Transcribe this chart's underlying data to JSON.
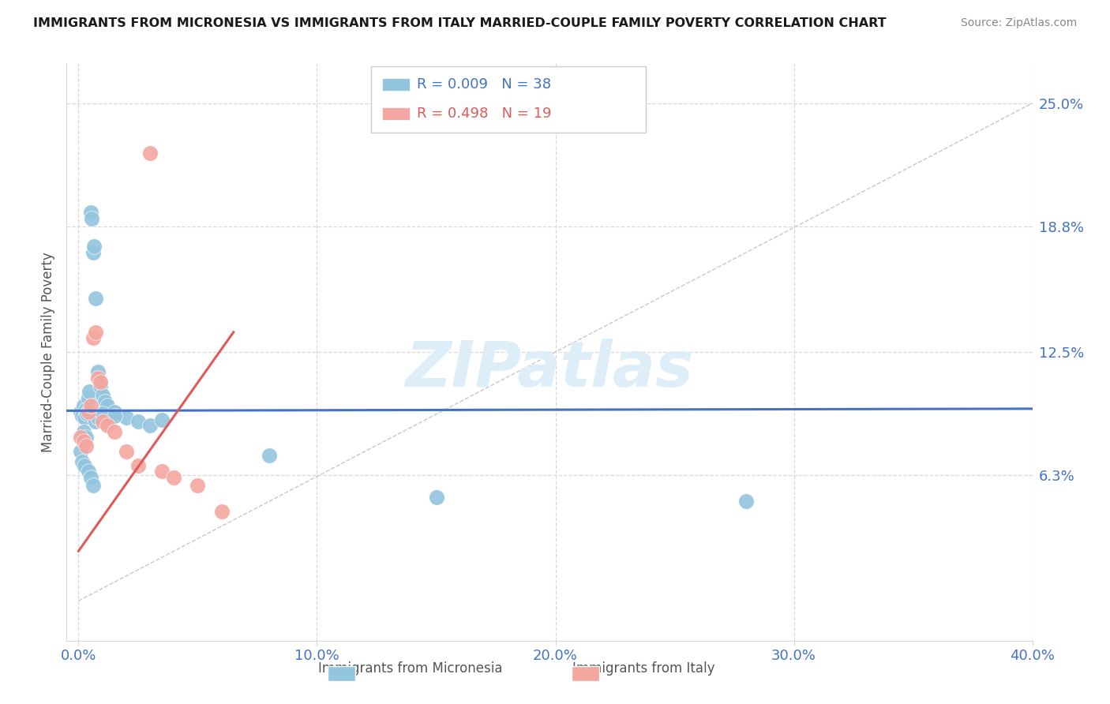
{
  "title": "IMMIGRANTS FROM MICRONESIA VS IMMIGRANTS FROM ITALY MARRIED-COUPLE FAMILY POVERTY CORRELATION CHART",
  "source": "Source: ZipAtlas.com",
  "ylabel": "Married-Couple Family Poverty",
  "ytick_values": [
    6.3,
    12.5,
    18.8,
    25.0
  ],
  "ytick_labels": [
    "6.3%",
    "12.5%",
    "18.8%",
    "25.0%"
  ],
  "ymax": 27.0,
  "ymin": -2.0,
  "xmax": 40.0,
  "xmin": -0.5,
  "xtick_values": [
    0,
    10,
    20,
    30,
    40
  ],
  "xtick_labels": [
    "0.0%",
    "10.0%",
    "20.0%",
    "30.0%",
    "40.0%"
  ],
  "watermark": "ZIPatlas",
  "legend_blue_r": "0.009",
  "legend_blue_n": "38",
  "legend_pink_r": "0.498",
  "legend_pink_n": "19",
  "legend_label_blue": "Immigrants from Micronesia",
  "legend_label_pink": "Immigrants from Italy",
  "blue_color": "#92c5de",
  "pink_color": "#f4a6a0",
  "blue_line_color": "#4472c4",
  "pink_line_color": "#e05a5a",
  "grid_color": "#d9d9d9",
  "diag_color": "#c8c8c8",
  "micronesia_x": [
    0.1,
    0.15,
    0.2,
    0.25,
    0.3,
    0.35,
    0.4,
    0.45,
    0.5,
    0.55,
    0.6,
    0.65,
    0.7,
    0.8,
    0.9,
    1.0,
    1.1,
    1.2,
    1.5,
    2.0,
    2.5,
    3.0,
    3.5,
    0.2,
    0.3,
    0.1,
    0.15,
    0.25,
    0.4,
    0.5,
    0.6,
    0.7,
    0.8,
    1.0,
    1.5,
    8.0,
    15.0,
    28.0
  ],
  "micronesia_y": [
    9.5,
    9.3,
    9.8,
    9.2,
    9.6,
    9.4,
    10.2,
    10.5,
    19.5,
    19.2,
    17.5,
    17.8,
    15.2,
    11.5,
    10.8,
    10.3,
    10.0,
    9.8,
    9.5,
    9.2,
    9.0,
    8.8,
    9.1,
    8.5,
    8.2,
    7.5,
    7.0,
    6.8,
    6.5,
    6.2,
    5.8,
    9.0,
    9.2,
    9.4,
    9.3,
    7.3,
    5.2,
    5.0
  ],
  "italy_x": [
    0.1,
    0.2,
    0.3,
    0.4,
    0.5,
    0.6,
    0.7,
    0.8,
    0.9,
    1.0,
    1.2,
    1.5,
    2.0,
    2.5,
    3.0,
    3.5,
    4.0,
    5.0,
    6.0
  ],
  "italy_y": [
    8.2,
    8.0,
    7.8,
    9.5,
    9.8,
    13.2,
    13.5,
    11.2,
    11.0,
    9.0,
    8.8,
    8.5,
    7.5,
    6.8,
    22.5,
    6.5,
    6.2,
    5.8,
    4.5
  ],
  "blue_line_x": [
    -0.5,
    40.0
  ],
  "blue_line_y": [
    9.55,
    9.65
  ],
  "pink_line_x0": 0.0,
  "pink_line_y0": 2.5,
  "pink_line_x1": 6.5,
  "pink_line_y1": 13.5
}
